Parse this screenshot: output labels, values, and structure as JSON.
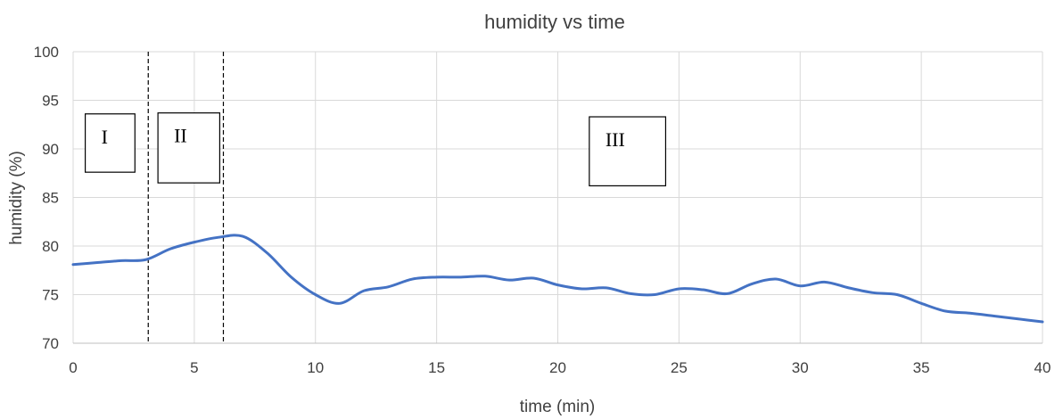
{
  "chart_data": {
    "type": "line",
    "title": "humidity vs time",
    "xlabel": "time (min)",
    "ylabel": "humidity (%)",
    "xlim": [
      0,
      40
    ],
    "ylim": [
      70,
      100
    ],
    "x_ticks": [
      "0",
      "5",
      "10",
      "15",
      "20",
      "25",
      "30",
      "35",
      "40"
    ],
    "y_ticks": [
      "70",
      "75",
      "80",
      "85",
      "90",
      "95",
      "100"
    ],
    "grid": true,
    "legend": "none",
    "series": [
      {
        "color": "#4472c4",
        "x": [
          0,
          1,
          2,
          3,
          4,
          5,
          6,
          7,
          8,
          9,
          10,
          11,
          12,
          13,
          14,
          15,
          16,
          17,
          18,
          19,
          20,
          21,
          22,
          23,
          24,
          25,
          26,
          27,
          28,
          29,
          30,
          31,
          32,
          33,
          34,
          35,
          36,
          37,
          38,
          39,
          40
        ],
        "y": [
          78.1,
          78.3,
          78.5,
          78.6,
          79.7,
          80.4,
          80.9,
          81.0,
          79.3,
          76.8,
          75.0,
          74.1,
          75.4,
          75.8,
          76.6,
          76.8,
          76.8,
          76.9,
          76.5,
          76.7,
          76.0,
          75.6,
          75.7,
          75.1,
          75.0,
          75.6,
          75.5,
          75.1,
          76.1,
          76.6,
          75.9,
          76.3,
          75.7,
          75.2,
          75.0,
          74.1,
          73.3,
          73.1,
          72.8,
          72.5,
          72.2
        ]
      }
    ],
    "dividers": [
      3.1,
      6.2
    ],
    "regions": [
      "I",
      "II",
      "III"
    ]
  }
}
